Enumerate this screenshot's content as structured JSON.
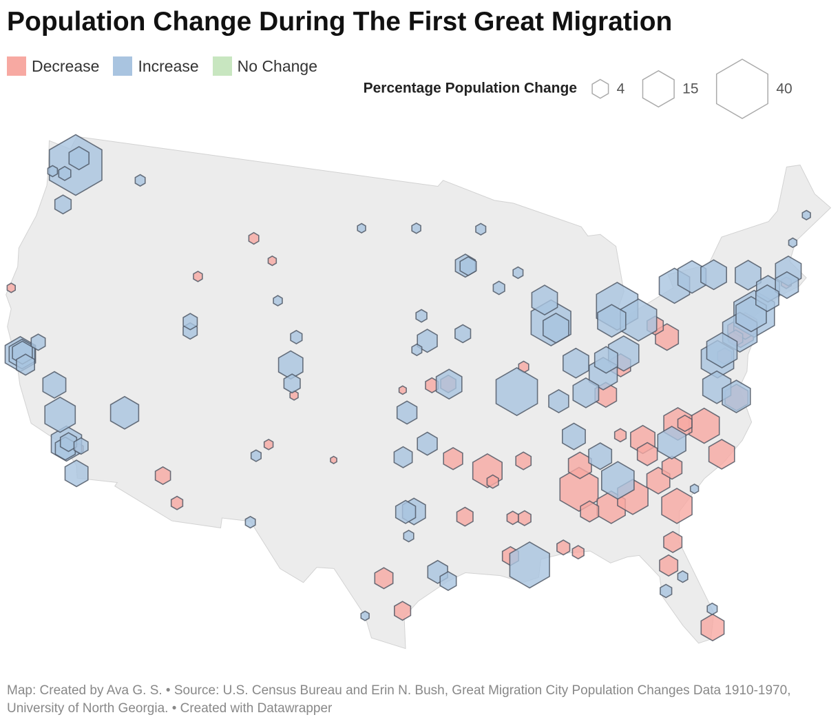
{
  "chart_data": {
    "type": "hexmap",
    "title": "Population Change During The First Great Migration",
    "series": [
      {
        "name": "Decrease",
        "color": "#f7a9a2",
        "lon": [
          -86.8,
          -84.99,
          -83.63,
          -81.1,
          -78.64,
          -80.24,
          -92.3,
          -77.9,
          -82.55,
          -76.3,
          -75.16,
          -74.76,
          -86.6,
          -81.97,
          -80.0,
          -84.5,
          -83.3,
          -82.4,
          -81.03,
          -98.5,
          -81.66,
          -82.1,
          -80.2,
          -86.3,
          -97.4,
          -93.75,
          -91.15,
          -112.07,
          -94.4,
          -94.63,
          -95.7,
          -88.04,
          -87.2,
          -90.2,
          -90.9,
          -90.05,
          -83.9,
          -80.65,
          -75.55,
          -76.5,
          -110.97,
          -108.5,
          -112.0,
          -107.0,
          -124.2,
          -117.4,
          -105.9,
          -104.6,
          -101.8,
          -97.6,
          -89.65,
          -71.4,
          -79.8,
          -92.0
        ],
        "lat": [
          33.52,
          32.46,
          32.84,
          32.08,
          35.78,
          36.1,
          34.75,
          34.23,
          35.6,
          36.85,
          39.95,
          40.22,
          34.7,
          33.47,
          40.44,
          38.04,
          39.4,
          34.85,
          34.0,
          29.42,
          30.33,
          29.2,
          25.77,
          32.37,
          27.8,
          32.5,
          30.45,
          33.45,
          35.4,
          39.11,
          39.05,
          30.7,
          30.4,
          32.3,
          32.35,
          35.15,
          35.96,
          41.1,
          39.74,
          38.98,
          32.22,
          45.8,
          43.5,
          44.8,
          40.8,
          33.95,
          35.7,
          38.25,
          35.2,
          38.8,
          39.8,
          41.82,
          36.07,
          34.2
        ],
        "values": [
          22,
          12,
          14,
          14,
          14,
          12,
          13,
          10,
          9,
          8,
          10,
          8,
          8,
          8,
          8,
          7,
          6,
          6,
          6,
          5,
          5,
          5,
          8,
          5,
          4,
          4,
          4,
          3.5,
          5.5,
          3.5,
          2.5,
          2.5,
          2,
          2.5,
          2,
          3.5,
          2,
          4,
          3,
          3,
          2,
          1.5,
          1.2,
          1,
          1,
          1.2,
          1.2,
          1,
          0.6,
          0.8,
          1.5,
          1.5,
          3,
          2
        ]
      },
      {
        "name": "Increase",
        "color": "#a9c4e0",
        "lon": [
          -122.3,
          -90.2,
          -83.0,
          -87.6,
          -74.0,
          -90.07,
          -84.4,
          -81.7,
          -77.0,
          -83.0,
          -78.9,
          -75.2,
          -76.6,
          -118.2,
          -119.0,
          -122.4,
          -74.2,
          -83.5,
          -77.6,
          -115.1,
          -84.5,
          -80.8,
          -73.8,
          -76.1,
          -71.06,
          -87.9,
          -87.3,
          -86.2,
          -122.3,
          -94.58,
          -77.4,
          -85.76,
          -76.3,
          -119.8,
          -117.2,
          -105.0,
          -96.8,
          -84.2,
          -72.7,
          -71.4,
          -72.9,
          -86.8,
          -85.3,
          -87.55,
          -96.0,
          -97.3,
          -93.3,
          -96.0,
          -95.4,
          -97.3,
          -122.2,
          -118.2,
          -122.3,
          -97.5,
          -121.9,
          -121.5,
          -93.1,
          -93.6,
          -104.8,
          -122.4,
          -118.1,
          -111.9,
          -112.0,
          -117.3,
          -91.0,
          -92.1,
          -104.8,
          -89.6,
          -94.8,
          -81.4,
          -80.05,
          -82.46,
          -122.9,
          -123.8,
          -117.4,
          -106.6,
          -106.5,
          -96.8,
          -96.7,
          -96.4,
          -100.8,
          -106.3,
          -97.1,
          -99.5,
          -79.9,
          -68.8,
          -70.25
        ],
        "lat": [
          47.6,
          38.6,
          42.33,
          41.88,
          40.71,
          29.95,
          33.75,
          41.5,
          38.9,
          39.96,
          42.89,
          39.98,
          39.29,
          34.05,
          35.37,
          37.77,
          40.73,
          41.65,
          43.16,
          36.17,
          39.1,
          35.23,
          42.65,
          43.05,
          42.36,
          43.04,
          41.6,
          39.77,
          37.8,
          39.1,
          37.54,
          38.25,
          36.9,
          36.74,
          32.72,
          39.74,
          32.78,
          39.76,
          41.76,
          41.7,
          41.31,
          36.16,
          35.05,
          37.97,
          41.26,
          37.69,
          44.98,
          36.15,
          29.76,
          32.75,
          47.98,
          33.8,
          37.87,
          35.47,
          37.34,
          38.58,
          44.95,
          41.59,
          41.14,
          45.52,
          34.15,
          40.76,
          41.22,
          34.1,
          43.8,
          46.78,
          38.83,
          44.5,
          29.3,
          28.54,
          26.7,
          27.95,
          47.04,
          46.98,
          47.66,
          35.08,
          31.76,
          46.88,
          40.81,
          42.5,
          46.8,
          42.85,
          31.55,
          27.5,
          32.78,
          44.8,
          43.66
        ],
        "values": [
          42,
          26,
          26,
          24,
          25,
          24,
          16,
          20,
          16,
          14,
          14,
          18,
          14,
          14,
          14,
          14,
          14,
          12,
          12,
          12,
          12,
          12,
          10,
          10,
          10,
          10,
          10,
          10,
          10,
          10,
          12,
          10,
          12,
          8,
          8,
          9,
          8,
          8,
          8,
          8,
          8,
          8,
          8,
          6,
          6,
          6,
          6,
          6,
          6,
          6,
          6,
          6,
          6,
          5,
          5,
          3,
          4,
          3.7,
          2,
          4,
          4,
          3,
          3,
          3,
          2,
          1.5,
          4,
          1.5,
          4,
          1.5,
          1.5,
          2,
          2.2,
          1.4,
          1.5,
          1.5,
          1.5,
          1.2,
          1.5,
          1.8,
          1,
          1.2,
          1.5,
          1,
          1,
          1,
          1
        ]
      },
      {
        "name": "No Change",
        "color": "#c8e6c0",
        "lon": [],
        "lat": [],
        "values": []
      }
    ],
    "size_legend": {
      "title": "Percentage Population Change",
      "values": [
        4,
        15,
        40
      ]
    },
    "source": "Map: Created by Ava G. S. • Source: U.S. Census Bureau and Erin N. Bush, Great Migration City Population Changes Data 1910-1970, University of North Georgia. • Created with Datawrapper"
  }
}
